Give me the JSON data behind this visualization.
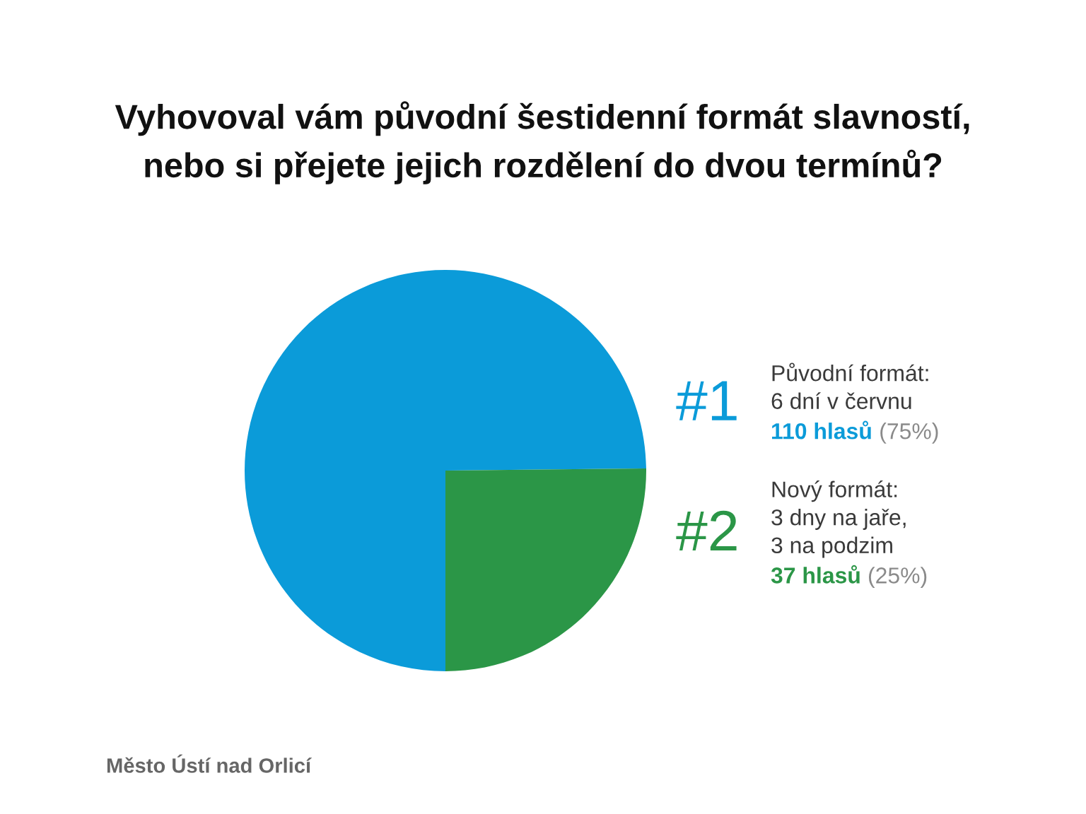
{
  "chart_data": {
    "type": "pie",
    "title": "Vyhovoval vám původní šestidenní formát slavností,\nnebo si přejete jejich rozdělení do dvou termínů?",
    "categories": [
      "Původní formát:\n6 dní v červnu",
      "Nový formát:\n3 dny na jaře,\n3 na podzim"
    ],
    "values": [
      110,
      37
    ],
    "colors": [
      "#0b9bd9",
      "#2b9647"
    ],
    "value_labels": [
      "110 hlasů (75%)",
      "37 hlasů (25%)"
    ],
    "annotations": [
      "#1",
      "#2",
      "Město Ústí nad Orlicí"
    ]
  }
}
